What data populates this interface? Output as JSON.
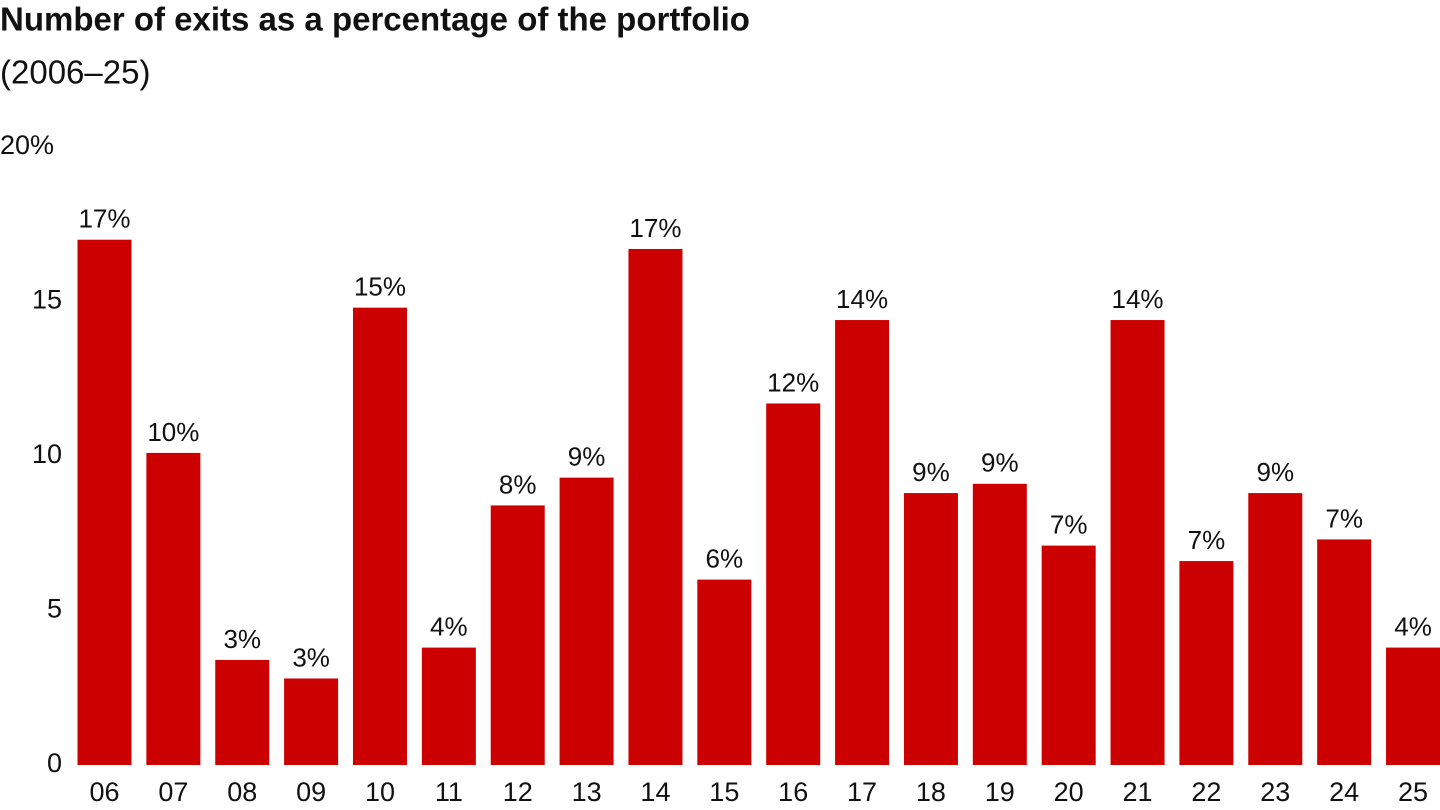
{
  "chart_data": {
    "type": "bar",
    "title": "Number of exits as a percentage of the portfolio",
    "subtitle": "(2006–25)",
    "categories": [
      "06",
      "07",
      "08",
      "09",
      "10",
      "11",
      "12",
      "13",
      "14",
      "15",
      "16",
      "17",
      "18",
      "19",
      "20",
      "21",
      "22",
      "23",
      "24",
      "25"
    ],
    "values": [
      17.0,
      10.1,
      3.4,
      2.8,
      14.8,
      3.8,
      8.4,
      9.3,
      16.7,
      6.0,
      11.7,
      14.4,
      8.8,
      9.1,
      7.1,
      14.4,
      6.6,
      8.8,
      7.3,
      3.8
    ],
    "value_labels": [
      "17%",
      "10%",
      "3%",
      "3%",
      "15%",
      "4%",
      "8%",
      "9%",
      "17%",
      "6%",
      "12%",
      "14%",
      "9%",
      "9%",
      "7%",
      "14%",
      "7%",
      "9%",
      "7%",
      "4%"
    ],
    "color": "#cc0000",
    "ylim": [
      0,
      20
    ],
    "yticks": [
      0,
      5,
      10,
      15,
      {
        "value": 20,
        "label": "20%"
      }
    ],
    "grid": false
  }
}
